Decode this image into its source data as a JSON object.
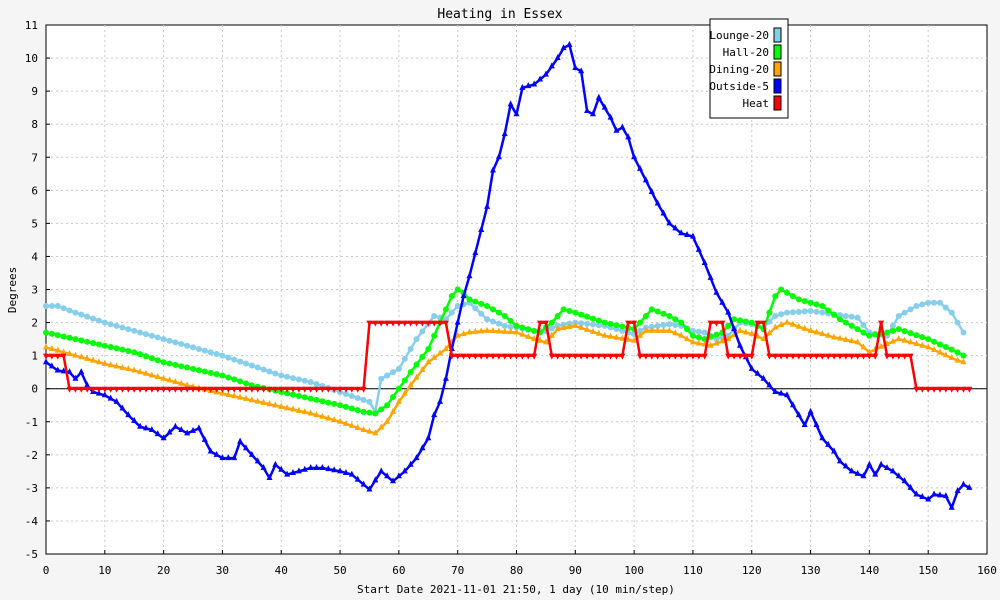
{
  "chart_data": {
    "type": "line",
    "title": "Heating in Essex",
    "xlabel": "Start Date 2021-11-01 21:50, 1 day (10 min/step)",
    "ylabel": "Degrees",
    "xlim": [
      0,
      160
    ],
    "ylim": [
      -5,
      11
    ],
    "xticks": [
      0,
      10,
      20,
      30,
      40,
      50,
      60,
      70,
      80,
      90,
      100,
      110,
      120,
      130,
      140,
      150,
      160
    ],
    "yticks": [
      -5,
      -4,
      -3,
      -2,
      -1,
      0,
      1,
      2,
      3,
      4,
      5,
      6,
      7,
      8,
      9,
      10,
      11
    ],
    "grid": true,
    "legend_position": "top-right",
    "series": [
      {
        "name": "Lounge-20",
        "color": "#87ceeb",
        "marker": "circle",
        "points": [
          [
            0,
            2.5
          ],
          [
            2,
            2.5
          ],
          [
            5,
            2.3
          ],
          [
            10,
            2.0
          ],
          [
            20,
            1.5
          ],
          [
            30,
            1.0
          ],
          [
            35,
            0.7
          ],
          [
            40,
            0.4
          ],
          [
            45,
            0.2
          ],
          [
            50,
            -0.1
          ],
          [
            55,
            -0.4
          ],
          [
            56,
            -0.7
          ],
          [
            57,
            0.3
          ],
          [
            60,
            0.6
          ],
          [
            63,
            1.5
          ],
          [
            66,
            2.2
          ],
          [
            68,
            2.1
          ],
          [
            70,
            2.5
          ],
          [
            72,
            2.6
          ],
          [
            75,
            2.1
          ],
          [
            78,
            1.9
          ],
          [
            80,
            1.85
          ],
          [
            83,
            1.75
          ],
          [
            85,
            1.75
          ],
          [
            87,
            1.9
          ],
          [
            90,
            2.0
          ],
          [
            95,
            1.9
          ],
          [
            100,
            1.65
          ],
          [
            102,
            1.85
          ],
          [
            106,
            1.95
          ],
          [
            108,
            1.9
          ],
          [
            110,
            1.75
          ],
          [
            112,
            1.7
          ],
          [
            114,
            1.5
          ],
          [
            116,
            1.6
          ],
          [
            118,
            2.0
          ],
          [
            120,
            1.95
          ],
          [
            122,
            1.85
          ],
          [
            124,
            2.2
          ],
          [
            126,
            2.3
          ],
          [
            130,
            2.35
          ],
          [
            134,
            2.25
          ],
          [
            138,
            2.15
          ],
          [
            140,
            1.7
          ],
          [
            143,
            1.6
          ],
          [
            145,
            2.2
          ],
          [
            148,
            2.5
          ],
          [
            150,
            2.6
          ],
          [
            152,
            2.6
          ],
          [
            154,
            2.3
          ],
          [
            156,
            1.7
          ]
        ]
      },
      {
        "name": "Hall-20",
        "color": "#00ff00",
        "marker": "circle",
        "points": [
          [
            0,
            1.7
          ],
          [
            5,
            1.5
          ],
          [
            10,
            1.3
          ],
          [
            15,
            1.1
          ],
          [
            20,
            0.8
          ],
          [
            25,
            0.6
          ],
          [
            30,
            0.4
          ],
          [
            35,
            0.1
          ],
          [
            40,
            -0.1
          ],
          [
            45,
            -0.3
          ],
          [
            50,
            -0.5
          ],
          [
            54,
            -0.7
          ],
          [
            56,
            -0.75
          ],
          [
            58,
            -0.5
          ],
          [
            60,
            0.0
          ],
          [
            62,
            0.5
          ],
          [
            65,
            1.2
          ],
          [
            67,
            2.0
          ],
          [
            69,
            2.8
          ],
          [
            70,
            3.0
          ],
          [
            71,
            2.9
          ],
          [
            72,
            2.7
          ],
          [
            75,
            2.5
          ],
          [
            78,
            2.2
          ],
          [
            80,
            1.9
          ],
          [
            82,
            1.8
          ],
          [
            84,
            1.7
          ],
          [
            86,
            2.0
          ],
          [
            88,
            2.4
          ],
          [
            90,
            2.3
          ],
          [
            95,
            2.0
          ],
          [
            100,
            1.8
          ],
          [
            102,
            2.2
          ],
          [
            103,
            2.4
          ],
          [
            106,
            2.2
          ],
          [
            108,
            2.0
          ],
          [
            110,
            1.6
          ],
          [
            112,
            1.5
          ],
          [
            115,
            1.7
          ],
          [
            117,
            2.1
          ],
          [
            120,
            2.0
          ],
          [
            122,
            1.8
          ],
          [
            124,
            2.8
          ],
          [
            125,
            3.0
          ],
          [
            128,
            2.7
          ],
          [
            132,
            2.5
          ],
          [
            135,
            2.1
          ],
          [
            138,
            1.8
          ],
          [
            140,
            1.6
          ],
          [
            143,
            1.7
          ],
          [
            145,
            1.8
          ],
          [
            150,
            1.5
          ],
          [
            155,
            1.1
          ],
          [
            156,
            1.0
          ]
        ]
      },
      {
        "name": "Dining-20",
        "color": "#ffa500",
        "marker": "triangle",
        "points": [
          [
            0,
            1.25
          ],
          [
            5,
            1.0
          ],
          [
            10,
            0.75
          ],
          [
            15,
            0.55
          ],
          [
            20,
            0.3
          ],
          [
            25,
            0.05
          ],
          [
            30,
            -0.15
          ],
          [
            35,
            -0.35
          ],
          [
            40,
            -0.55
          ],
          [
            45,
            -0.75
          ],
          [
            50,
            -1.0
          ],
          [
            54,
            -1.25
          ],
          [
            56,
            -1.35
          ],
          [
            58,
            -1.0
          ],
          [
            60,
            -0.4
          ],
          [
            62,
            0.1
          ],
          [
            65,
            0.8
          ],
          [
            68,
            1.2
          ],
          [
            70,
            1.6
          ],
          [
            72,
            1.7
          ],
          [
            75,
            1.75
          ],
          [
            80,
            1.7
          ],
          [
            83,
            1.5
          ],
          [
            85,
            1.4
          ],
          [
            87,
            1.8
          ],
          [
            90,
            1.9
          ],
          [
            95,
            1.6
          ],
          [
            100,
            1.45
          ],
          [
            102,
            1.75
          ],
          [
            106,
            1.75
          ],
          [
            108,
            1.6
          ],
          [
            110,
            1.4
          ],
          [
            113,
            1.3
          ],
          [
            116,
            1.5
          ],
          [
            118,
            1.75
          ],
          [
            120,
            1.65
          ],
          [
            122,
            1.5
          ],
          [
            124,
            1.85
          ],
          [
            126,
            2.0
          ],
          [
            130,
            1.75
          ],
          [
            134,
            1.55
          ],
          [
            138,
            1.4
          ],
          [
            140,
            1.1
          ],
          [
            143,
            1.35
          ],
          [
            145,
            1.5
          ],
          [
            150,
            1.25
          ],
          [
            155,
            0.85
          ],
          [
            156,
            0.8
          ]
        ]
      },
      {
        "name": "Outside-5",
        "color": "#0000ff",
        "marker": "triangle",
        "points": [
          [
            0,
            0.8
          ],
          [
            2,
            0.55
          ],
          [
            4,
            0.5
          ],
          [
            5,
            0.3
          ],
          [
            6,
            0.5
          ],
          [
            7,
            0.1
          ],
          [
            8,
            -0.1
          ],
          [
            10,
            -0.2
          ],
          [
            12,
            -0.4
          ],
          [
            14,
            -0.8
          ],
          [
            16,
            -1.15
          ],
          [
            18,
            -1.25
          ],
          [
            20,
            -1.5
          ],
          [
            22,
            -1.15
          ],
          [
            24,
            -1.35
          ],
          [
            26,
            -1.2
          ],
          [
            28,
            -1.9
          ],
          [
            30,
            -2.1
          ],
          [
            32,
            -2.1
          ],
          [
            33,
            -1.6
          ],
          [
            35,
            -2.0
          ],
          [
            37,
            -2.4
          ],
          [
            38,
            -2.7
          ],
          [
            39,
            -2.3
          ],
          [
            41,
            -2.6
          ],
          [
            43,
            -2.5
          ],
          [
            45,
            -2.4
          ],
          [
            47,
            -2.4
          ],
          [
            50,
            -2.5
          ],
          [
            52,
            -2.6
          ],
          [
            54,
            -2.9
          ],
          [
            55,
            -3.05
          ],
          [
            57,
            -2.5
          ],
          [
            59,
            -2.8
          ],
          [
            61,
            -2.5
          ],
          [
            63,
            -2.1
          ],
          [
            65,
            -1.5
          ],
          [
            66,
            -0.8
          ],
          [
            67,
            -0.4
          ],
          [
            68,
            0.3
          ],
          [
            69,
            1.2
          ],
          [
            70,
            2.0
          ],
          [
            71,
            2.8
          ],
          [
            72,
            3.4
          ],
          [
            73,
            4.1
          ],
          [
            75,
            5.5
          ],
          [
            76,
            6.6
          ],
          [
            77,
            7.0
          ],
          [
            78,
            7.7
          ],
          [
            79,
            8.6
          ],
          [
            80,
            8.3
          ],
          [
            81,
            9.1
          ],
          [
            83,
            9.2
          ],
          [
            85,
            9.5
          ],
          [
            87,
            10.0
          ],
          [
            88,
            10.3
          ],
          [
            89,
            10.4
          ],
          [
            90,
            9.7
          ],
          [
            91,
            9.6
          ],
          [
            92,
            8.4
          ],
          [
            93,
            8.3
          ],
          [
            94,
            8.8
          ],
          [
            95,
            8.5
          ],
          [
            96,
            8.2
          ],
          [
            97,
            7.8
          ],
          [
            98,
            7.9
          ],
          [
            99,
            7.6
          ],
          [
            100,
            7.0
          ],
          [
            102,
            6.3
          ],
          [
            104,
            5.6
          ],
          [
            106,
            5.0
          ],
          [
            108,
            4.7
          ],
          [
            110,
            4.6
          ],
          [
            112,
            3.8
          ],
          [
            114,
            2.9
          ],
          [
            116,
            2.3
          ],
          [
            118,
            1.3
          ],
          [
            120,
            0.6
          ],
          [
            122,
            0.3
          ],
          [
            124,
            -0.1
          ],
          [
            126,
            -0.2
          ],
          [
            128,
            -0.8
          ],
          [
            129,
            -1.1
          ],
          [
            130,
            -0.7
          ],
          [
            132,
            -1.5
          ],
          [
            134,
            -1.9
          ],
          [
            135,
            -2.2
          ],
          [
            137,
            -2.5
          ],
          [
            139,
            -2.65
          ],
          [
            140,
            -2.3
          ],
          [
            141,
            -2.6
          ],
          [
            142,
            -2.3
          ],
          [
            144,
            -2.5
          ],
          [
            146,
            -2.8
          ],
          [
            148,
            -3.2
          ],
          [
            150,
            -3.35
          ],
          [
            151,
            -3.2
          ],
          [
            153,
            -3.25
          ],
          [
            154,
            -3.6
          ],
          [
            155,
            -3.1
          ],
          [
            156,
            -2.9
          ],
          [
            157,
            -3.0
          ]
        ]
      },
      {
        "name": "Heat",
        "color": "#ff0000",
        "marker": "triangle-down",
        "points": [
          [
            0,
            1
          ],
          [
            3,
            1
          ],
          [
            4,
            0
          ],
          [
            54,
            0
          ],
          [
            55,
            2
          ],
          [
            68,
            2
          ],
          [
            69,
            1
          ],
          [
            83,
            1
          ],
          [
            84,
            2
          ],
          [
            85,
            2
          ],
          [
            86,
            1
          ],
          [
            98,
            1
          ],
          [
            99,
            2
          ],
          [
            100,
            2
          ],
          [
            101,
            1
          ],
          [
            112,
            1
          ],
          [
            113,
            2
          ],
          [
            115,
            2
          ],
          [
            116,
            1
          ],
          [
            120,
            1
          ],
          [
            121,
            2
          ],
          [
            122,
            2
          ],
          [
            123,
            1
          ],
          [
            141,
            1
          ],
          [
            142,
            2
          ],
          [
            143,
            1
          ],
          [
            147,
            1
          ],
          [
            148,
            0
          ],
          [
            157,
            0
          ]
        ]
      }
    ]
  }
}
